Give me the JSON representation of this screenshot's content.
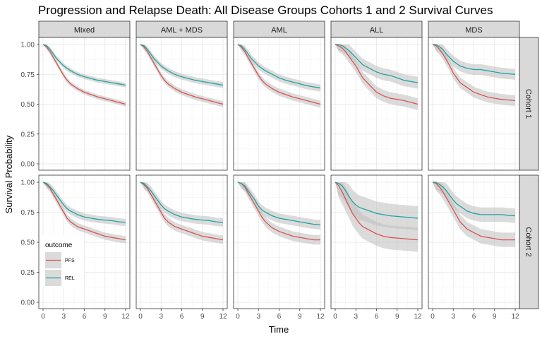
{
  "chart_data": {
    "type": "line",
    "title": "Progression and Relapse Death: All Disease Groups Cohorts 1 and 2 Survival Curves",
    "xlabel": "Time",
    "ylabel": "Survival Probability",
    "xlim": [
      0,
      12
    ],
    "ylim": [
      0,
      1
    ],
    "x_ticks": [
      0,
      3,
      6,
      9,
      12
    ],
    "y_ticks": [
      0.0,
      0.25,
      0.5,
      0.75,
      1.0
    ],
    "y_tick_labels": [
      "0.00",
      "0.25",
      "0.50",
      "0.75",
      "1.00"
    ],
    "grid": true,
    "legend_position": "bottom-left",
    "legend_title": "outcome",
    "colors": {
      "PFS": "#d9534f",
      "REL": "#1fa3a3",
      "band": "#bdbdbd",
      "strip": "#d9d9d9"
    },
    "facet_columns": [
      "Mixed",
      "AML + MDS",
      "AML",
      "ALL",
      "MDS"
    ],
    "facet_rows": [
      "Cohort 1",
      "Cohort 2"
    ],
    "x": [
      0,
      0.5,
      1,
      1.5,
      2,
      2.5,
      3,
      3.5,
      4,
      5,
      6,
      7,
      8,
      9,
      10,
      11,
      12
    ],
    "panels": [
      {
        "row": "Cohort 1",
        "column": "Mixed",
        "series": [
          {
            "name": "PFS",
            "values": [
              1,
              0.98,
              0.94,
              0.89,
              0.84,
              0.79,
              0.74,
              0.7,
              0.67,
              0.63,
              0.6,
              0.58,
              0.56,
              0.545,
              0.53,
              0.515,
              0.5
            ],
            "band": 0.02
          },
          {
            "name": "REL",
            "values": [
              1,
              0.99,
              0.96,
              0.92,
              0.88,
              0.85,
              0.82,
              0.8,
              0.78,
              0.75,
              0.73,
              0.715,
              0.7,
              0.69,
              0.68,
              0.67,
              0.66
            ],
            "band": 0.02
          }
        ]
      },
      {
        "row": "Cohort 1",
        "column": "AML + MDS",
        "series": [
          {
            "name": "PFS",
            "values": [
              1,
              0.98,
              0.94,
              0.89,
              0.84,
              0.79,
              0.74,
              0.7,
              0.67,
              0.63,
              0.6,
              0.58,
              0.56,
              0.545,
              0.53,
              0.515,
              0.5
            ],
            "band": 0.025
          },
          {
            "name": "REL",
            "values": [
              1,
              0.99,
              0.96,
              0.92,
              0.88,
              0.85,
              0.82,
              0.8,
              0.78,
              0.75,
              0.73,
              0.715,
              0.7,
              0.69,
              0.68,
              0.67,
              0.66
            ],
            "band": 0.025
          }
        ]
      },
      {
        "row": "Cohort 1",
        "column": "AML",
        "series": [
          {
            "name": "PFS",
            "values": [
              1,
              0.98,
              0.94,
              0.89,
              0.84,
              0.79,
              0.74,
              0.7,
              0.67,
              0.63,
              0.6,
              0.58,
              0.56,
              0.545,
              0.53,
              0.515,
              0.5
            ],
            "band": 0.03
          },
          {
            "name": "REL",
            "values": [
              1,
              0.99,
              0.96,
              0.92,
              0.88,
              0.85,
              0.82,
              0.8,
              0.78,
              0.75,
              0.72,
              0.7,
              0.685,
              0.67,
              0.655,
              0.645,
              0.635
            ],
            "band": 0.03
          }
        ]
      },
      {
        "row": "Cohort 1",
        "column": "ALL",
        "series": [
          {
            "name": "PFS",
            "values": [
              1,
              0.99,
              0.97,
              0.94,
              0.9,
              0.86,
              0.82,
              0.77,
              0.72,
              0.66,
              0.6,
              0.57,
              0.55,
              0.54,
              0.53,
              0.515,
              0.5
            ],
            "band": 0.05
          },
          {
            "name": "REL",
            "values": [
              1,
              1,
              0.99,
              0.97,
              0.95,
              0.92,
              0.89,
              0.86,
              0.83,
              0.8,
              0.77,
              0.75,
              0.74,
              0.72,
              0.7,
              0.69,
              0.68
            ],
            "band": 0.05
          }
        ]
      },
      {
        "row": "Cohort 1",
        "column": "MDS",
        "series": [
          {
            "name": "PFS",
            "values": [
              1,
              0.99,
              0.96,
              0.92,
              0.87,
              0.82,
              0.76,
              0.72,
              0.68,
              0.64,
              0.6,
              0.58,
              0.56,
              0.55,
              0.54,
              0.535,
              0.53
            ],
            "band": 0.045
          },
          {
            "name": "REL",
            "values": [
              1,
              1,
              0.98,
              0.96,
              0.92,
              0.89,
              0.86,
              0.84,
              0.82,
              0.8,
              0.79,
              0.79,
              0.78,
              0.77,
              0.76,
              0.755,
              0.75
            ],
            "band": 0.045
          }
        ]
      },
      {
        "row": "Cohort 2",
        "column": "Mixed",
        "series": [
          {
            "name": "PFS",
            "values": [
              1,
              0.98,
              0.95,
              0.9,
              0.85,
              0.8,
              0.75,
              0.7,
              0.67,
              0.63,
              0.61,
              0.59,
              0.57,
              0.55,
              0.54,
              0.53,
              0.52
            ],
            "band": 0.03
          },
          {
            "name": "REL",
            "values": [
              1,
              0.99,
              0.96,
              0.93,
              0.89,
              0.85,
              0.81,
              0.78,
              0.76,
              0.73,
              0.71,
              0.7,
              0.69,
              0.685,
              0.68,
              0.67,
              0.665
            ],
            "band": 0.03
          }
        ]
      },
      {
        "row": "Cohort 2",
        "column": "AML + MDS",
        "series": [
          {
            "name": "PFS",
            "values": [
              1,
              0.98,
              0.95,
              0.9,
              0.85,
              0.8,
              0.75,
              0.7,
              0.67,
              0.63,
              0.61,
              0.59,
              0.57,
              0.55,
              0.54,
              0.53,
              0.52
            ],
            "band": 0.035
          },
          {
            "name": "REL",
            "values": [
              1,
              0.99,
              0.96,
              0.93,
              0.89,
              0.85,
              0.81,
              0.78,
              0.76,
              0.73,
              0.71,
              0.7,
              0.69,
              0.685,
              0.68,
              0.67,
              0.665
            ],
            "band": 0.035
          }
        ]
      },
      {
        "row": "Cohort 2",
        "column": "AML",
        "series": [
          {
            "name": "PFS",
            "values": [
              1,
              0.99,
              0.96,
              0.91,
              0.86,
              0.81,
              0.76,
              0.71,
              0.67,
              0.62,
              0.59,
              0.57,
              0.55,
              0.54,
              0.53,
              0.52,
              0.52
            ],
            "band": 0.04
          },
          {
            "name": "REL",
            "values": [
              1,
              0.99,
              0.97,
              0.93,
              0.89,
              0.85,
              0.8,
              0.77,
              0.75,
              0.72,
              0.7,
              0.69,
              0.68,
              0.67,
              0.66,
              0.65,
              0.645
            ],
            "band": 0.04
          }
        ]
      },
      {
        "row": "Cohort 2",
        "column": "ALL",
        "series": [
          {
            "name": "PFS",
            "values": [
              1,
              0.97,
              0.92,
              0.86,
              0.8,
              0.74,
              0.7,
              0.66,
              0.63,
              0.6,
              0.57,
              0.55,
              0.54,
              0.535,
              0.53,
              0.525,
              0.52
            ],
            "band": 0.1
          },
          {
            "name": "REL",
            "values": [
              1,
              0.99,
              0.97,
              0.93,
              0.88,
              0.84,
              0.81,
              0.79,
              0.78,
              0.76,
              0.74,
              0.73,
              0.72,
              0.715,
              0.71,
              0.705,
              0.7
            ],
            "band": 0.1
          }
        ]
      },
      {
        "row": "Cohort 2",
        "column": "MDS",
        "series": [
          {
            "name": "PFS",
            "values": [
              1,
              0.99,
              0.96,
              0.92,
              0.87,
              0.82,
              0.77,
              0.72,
              0.67,
              0.61,
              0.58,
              0.55,
              0.54,
              0.53,
              0.52,
              0.52,
              0.52
            ],
            "band": 0.06
          },
          {
            "name": "REL",
            "values": [
              1,
              1,
              0.98,
              0.96,
              0.93,
              0.89,
              0.85,
              0.82,
              0.8,
              0.76,
              0.74,
              0.73,
              0.73,
              0.73,
              0.73,
              0.725,
              0.72
            ],
            "band": 0.06
          }
        ]
      }
    ]
  }
}
